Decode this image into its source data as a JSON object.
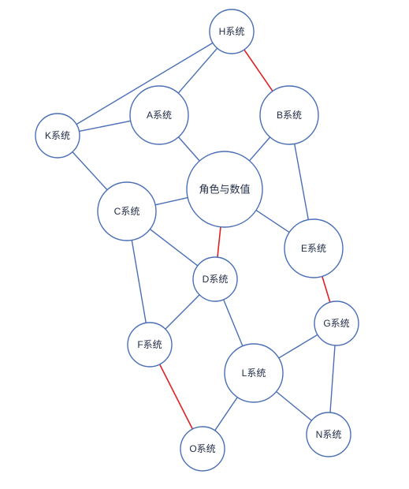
{
  "diagram": {
    "colors": {
      "node_stroke": "#4a6fb5",
      "node_fill": "#ffffff",
      "edge_default": "#4a6fb5",
      "edge_highlight": "#e02020",
      "text": "#1f2a44"
    },
    "nodes": [
      {
        "id": "H",
        "label": "H系统"
      },
      {
        "id": "A",
        "label": "A系统"
      },
      {
        "id": "B",
        "label": "B系统"
      },
      {
        "id": "K",
        "label": "K系统"
      },
      {
        "id": "CENTER",
        "label": "角色与数值"
      },
      {
        "id": "C",
        "label": "C系统"
      },
      {
        "id": "E",
        "label": "E系统"
      },
      {
        "id": "D",
        "label": "D系统"
      },
      {
        "id": "G",
        "label": "G系统"
      },
      {
        "id": "F",
        "label": "F系统"
      },
      {
        "id": "L",
        "label": "L系统"
      },
      {
        "id": "N",
        "label": "N系统"
      },
      {
        "id": "O",
        "label": "O系统"
      }
    ],
    "edges": [
      {
        "from": "H",
        "to": "K",
        "highlight": false
      },
      {
        "from": "H",
        "to": "A",
        "highlight": false
      },
      {
        "from": "H",
        "to": "B",
        "highlight": true
      },
      {
        "from": "K",
        "to": "A",
        "highlight": false
      },
      {
        "from": "K",
        "to": "C",
        "highlight": false
      },
      {
        "from": "A",
        "to": "CENTER",
        "highlight": false
      },
      {
        "from": "B",
        "to": "CENTER",
        "highlight": false
      },
      {
        "from": "B",
        "to": "E",
        "highlight": false
      },
      {
        "from": "CENTER",
        "to": "C",
        "highlight": false
      },
      {
        "from": "CENTER",
        "to": "E",
        "highlight": false
      },
      {
        "from": "CENTER",
        "to": "D",
        "highlight": true
      },
      {
        "from": "C",
        "to": "D",
        "highlight": false
      },
      {
        "from": "C",
        "to": "F",
        "highlight": false
      },
      {
        "from": "D",
        "to": "F",
        "highlight": false
      },
      {
        "from": "D",
        "to": "L",
        "highlight": false
      },
      {
        "from": "E",
        "to": "G",
        "highlight": true
      },
      {
        "from": "G",
        "to": "L",
        "highlight": false
      },
      {
        "from": "G",
        "to": "N",
        "highlight": false
      },
      {
        "from": "L",
        "to": "N",
        "highlight": false
      },
      {
        "from": "L",
        "to": "O",
        "highlight": false
      },
      {
        "from": "F",
        "to": "O",
        "highlight": true
      }
    ]
  }
}
